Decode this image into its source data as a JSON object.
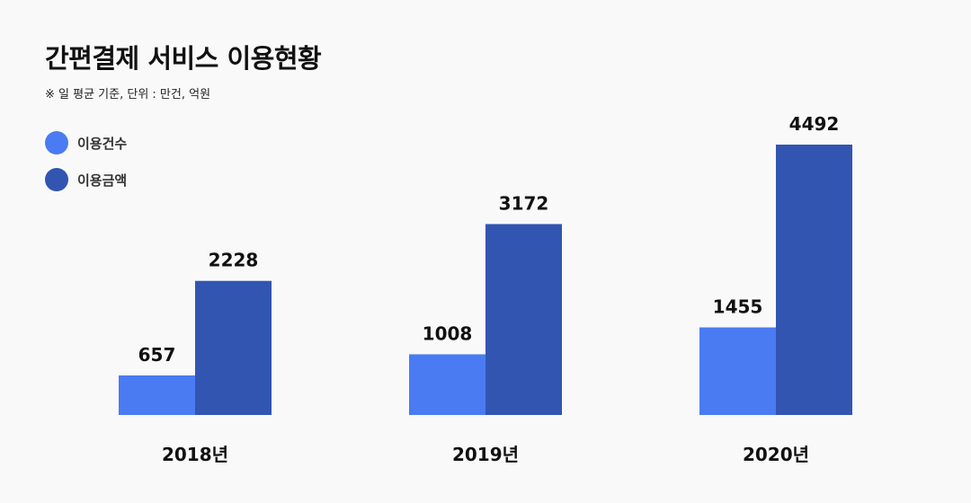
{
  "header": {
    "title": "간편결제 서비스 이용현황",
    "subtitle": "※ 일 평균 기준, 단위 : 만건, 억원"
  },
  "colors": {
    "series1": "#4a7bf2",
    "series2": "#3255b2",
    "background": "#f9f9f9"
  },
  "chart_data": {
    "type": "bar",
    "title": "간편결제 서비스 이용현황",
    "subtitle": "※ 일 평균 기준, 단위 : 만건, 억원",
    "categories": [
      "2018년",
      "2019년",
      "2020년"
    ],
    "series": [
      {
        "name": "이용건수",
        "values": [
          657,
          1008,
          1455
        ],
        "color": "#4a7bf2"
      },
      {
        "name": "이용금액",
        "values": [
          2228,
          3172,
          4492
        ],
        "color": "#3255b2"
      }
    ],
    "ylim": [
      0,
      5000
    ],
    "grid": false,
    "legend": "top-left",
    "data_labels": true
  }
}
